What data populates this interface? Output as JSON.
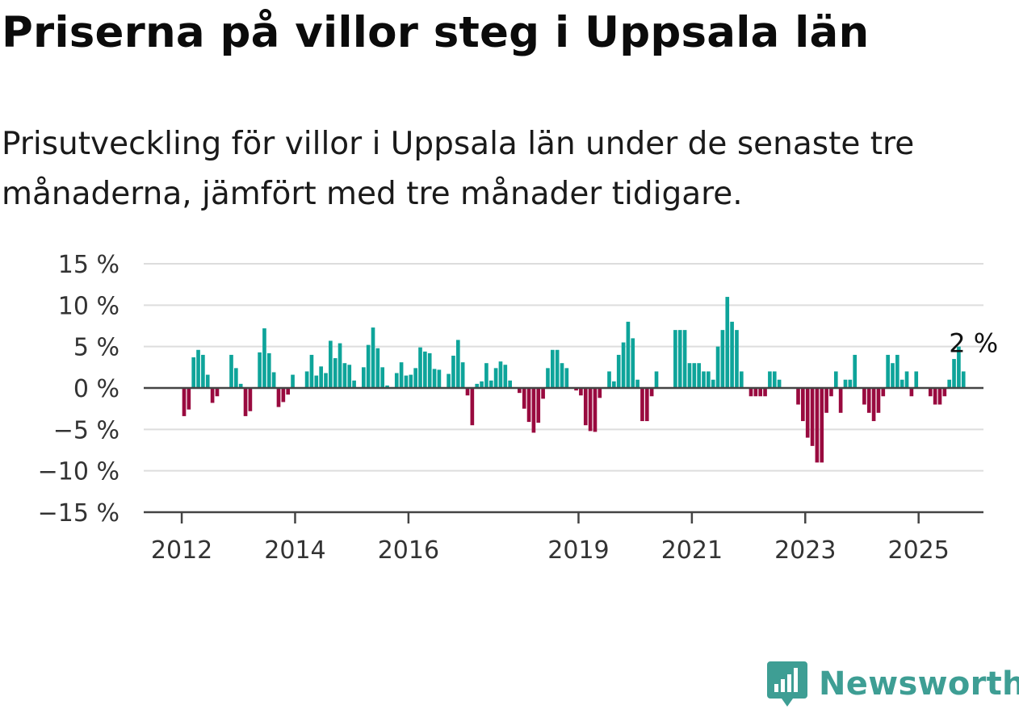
{
  "header": {
    "title": "Priserna på villor steg i Uppsala län",
    "subtitle": "Prisutveckling för villor i Uppsala län under de senaste tre månaderna, jämfört med tre månader tidigare."
  },
  "brand": {
    "name": "Newsworthy",
    "color": "#3e9e94",
    "icon": "newsworthy-logo-icon"
  },
  "colors": {
    "positive": "#0ea49a",
    "negative": "#990a3f",
    "grid": "#dddddd",
    "zero_line": "#444444"
  },
  "chart_data": {
    "type": "bar",
    "x_start": "2012-01",
    "x_end": "2025-07",
    "xticks": [
      "2012",
      "2014",
      "2016",
      "2019",
      "2021",
      "2023",
      "2025"
    ],
    "yticks": [
      "15 %",
      "10 %",
      "5 %",
      "0 %",
      "−5 %",
      "−10 %",
      "−15 %"
    ],
    "ylim": [
      -15,
      15
    ],
    "annotation": {
      "label": "2 %",
      "date": "2025-07",
      "value": 2
    },
    "values": [
      -3.4,
      -2.6,
      3.7,
      4.6,
      4.0,
      1.6,
      -1.8,
      -1.0,
      0,
      0,
      4.0,
      2.4,
      0.5,
      -3.4,
      -2.8,
      0,
      4.3,
      7.2,
      4.2,
      1.9,
      -2.3,
      -1.7,
      -0.8,
      1.6,
      0,
      0,
      2.0,
      4.0,
      1.5,
      2.6,
      1.8,
      5.7,
      3.6,
      5.4,
      3.0,
      2.8,
      0.9,
      0,
      2.5,
      5.2,
      7.3,
      4.8,
      2.5,
      0.3,
      0,
      1.8,
      3.1,
      1.5,
      1.6,
      2.4,
      4.9,
      4.4,
      4.2,
      2.3,
      2.2,
      0,
      1.7,
      3.9,
      5.8,
      3.1,
      -0.9,
      -4.5,
      0.5,
      0.8,
      3.0,
      0.9,
      2.4,
      3.2,
      2.8,
      0.9,
      0,
      -0.6,
      -2.5,
      -4.1,
      -5.4,
      -4.2,
      -1.3,
      2.4,
      4.6,
      4.6,
      3.0,
      2.4,
      0,
      -0.3,
      -0.9,
      -4.5,
      -5.2,
      -5.3,
      -1.2,
      0,
      2.0,
      0.8,
      4.0,
      5.5,
      8.0,
      6.0,
      1.0,
      -4.0,
      -4.0,
      -1.0,
      2.0,
      0,
      0,
      0,
      7.0,
      7.0,
      7.0,
      3.0,
      3.0,
      3.0,
      2.0,
      2.0,
      1.0,
      5.0,
      7.0,
      11.0,
      8.0,
      7.0,
      2.0,
      0,
      -1.0,
      -1.0,
      -1.0,
      -1.0,
      2.0,
      2.0,
      1.0,
      0,
      0,
      0,
      -2.0,
      -4.0,
      -6.0,
      -7.0,
      -9.0,
      -9.0,
      -3.0,
      -1.0,
      2.0,
      -3.0,
      1.0,
      1.0,
      4.0,
      0,
      -2.0,
      -3.0,
      -4.0,
      -3.0,
      -1.0,
      4.0,
      3.0,
      4.0,
      1.0,
      2.0,
      -1.0,
      2.0,
      0,
      0,
      -1.0,
      -2.0,
      -2.0,
      -1.0,
      1.0,
      3.5,
      5.0,
      2.0
    ]
  }
}
